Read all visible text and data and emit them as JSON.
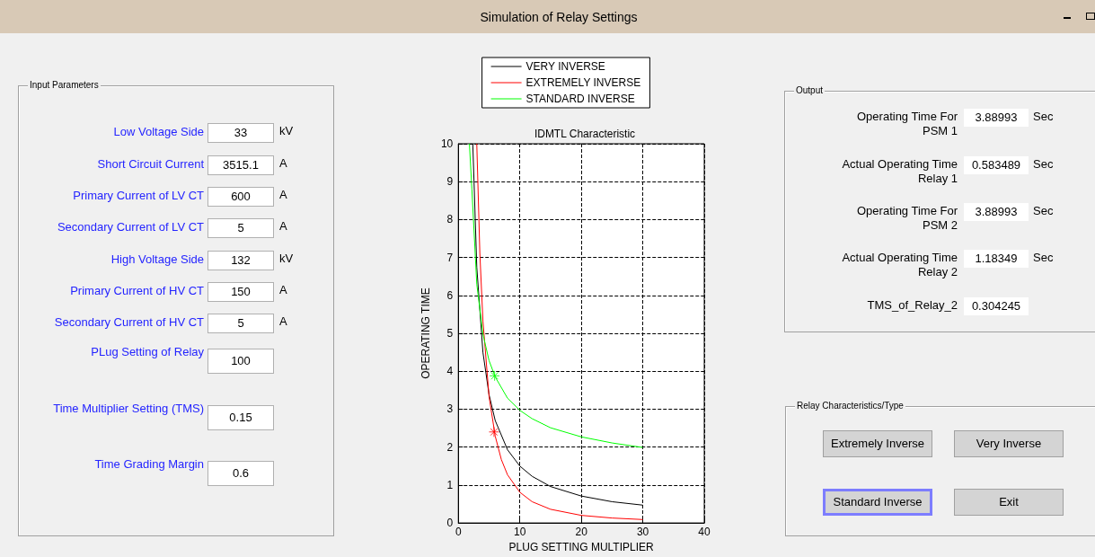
{
  "chart_data": [
    {
      "type": "other",
      "title": "Simulation of Relay Settings"
    },
    {
      "type": "other",
      "title": "Input Parameters",
      "categories": [
        "Low  Voltage Side",
        "Short Circuit Current",
        "Primary Current of LV CT",
        "Secondary Current of LV CT",
        "High  Voltage Side",
        "Primary Current of HV CT",
        "Secondary Current of HV CT",
        "PLug Setting of Relay",
        "Time Multiplier Setting (TMS)",
        "Time Grading Margin"
      ],
      "value_labels": [
        "33",
        "3515.1",
        "600",
        "5",
        "132",
        "150",
        "5",
        "100",
        "0.15",
        "0.6"
      ],
      "annotations": [
        {
          "text": "kV",
          "x": "Low  Voltage Side"
        },
        {
          "text": "A",
          "x": "Short Circuit Current"
        },
        {
          "text": "A",
          "x": "Primary Current of LV CT"
        },
        {
          "text": "A",
          "x": "Secondary Current of LV CT"
        },
        {
          "text": "kV",
          "x": "High  Voltage Side"
        },
        {
          "text": "A",
          "x": "Primary Current of HV CT"
        },
        {
          "text": "A",
          "x": "Secondary Current of HV CT"
        }
      ]
    },
    {
      "type": "line",
      "title": "IDMTL Characteristic",
      "xlabel": "PLUG SETTING MULTIPLIER",
      "ylabel": "OPERATING TIME",
      "xlim": [
        0,
        40
      ],
      "xticks": [
        0,
        10,
        20,
        30,
        40
      ],
      "ylim": [
        0,
        10
      ],
      "yticks": [
        0,
        1,
        2,
        3,
        4,
        5,
        6,
        7,
        8,
        9,
        10
      ],
      "grid": true,
      "legend": "top",
      "marker": "none",
      "series": [
        {
          "name": "VERY INVERSE",
          "color": "#000000",
          "x": [
            2.35,
            3,
            4,
            5,
            6,
            8,
            10,
            12,
            15,
            20,
            25,
            30
          ],
          "values": [
            10,
            6.75,
            4.5,
            3.38,
            2.7,
            1.93,
            1.5,
            1.23,
            0.96,
            0.71,
            0.56,
            0.47
          ]
        },
        {
          "name": "EXTREMELY INVERSE",
          "color": "#ff0000",
          "x": [
            3,
            3.5,
            4,
            5,
            6,
            7,
            8,
            10,
            12,
            15,
            20,
            25,
            30
          ],
          "values": [
            10,
            7.11,
            5.33,
            3.33,
            2.29,
            1.67,
            1.27,
            0.81,
            0.56,
            0.36,
            0.2,
            0.13,
            0.09
          ]
        },
        {
          "name": "STANDARD INVERSE",
          "color": "#00ff00",
          "x": [
            1.8,
            2.2,
            3,
            4,
            5,
            6,
            8,
            10,
            12,
            15,
            20,
            25,
            30
          ],
          "values": [
            10,
            8.8,
            6.3,
            4.98,
            4.28,
            3.85,
            3.29,
            2.97,
            2.75,
            2.51,
            2.27,
            2.11,
            1.99
          ]
        },
        {
          "type": "scatter",
          "color": "#00ff00",
          "marker": "cross",
          "x": [
            5.9
          ],
          "values": [
            3.88
          ]
        },
        {
          "type": "scatter",
          "color": "#ff0000",
          "marker": "cross",
          "x": [
            5.8
          ],
          "values": [
            2.4
          ]
        }
      ]
    },
    {
      "type": "other",
      "title": "Output",
      "categories": [
        "Operating Time For PSM 1",
        "Actual Operating Time Relay 1",
        "Operating Time For PSM 2",
        "Actual Operating Time Relay 2",
        "TMS_of_Relay_2"
      ],
      "value_labels": [
        "3.88993",
        "0.583489",
        "3.88993",
        "1.18349",
        "0.304245"
      ],
      "annotations": [
        {
          "text": "Sec",
          "x": "Operating Time For PSM 1"
        },
        {
          "text": "Sec",
          "x": "Actual Operating Time Relay 1"
        },
        {
          "text": "Sec",
          "x": "Operating Time For PSM 2"
        },
        {
          "text": "Sec",
          "x": "Actual Operating Time Relay 2"
        }
      ]
    },
    {
      "type": "other",
      "title": "Relay Characteristics/Type",
      "annotations": [
        "Extremely Inverse",
        "Very Inverse",
        "Standard Inverse",
        "Exit"
      ]
    }
  ]
}
